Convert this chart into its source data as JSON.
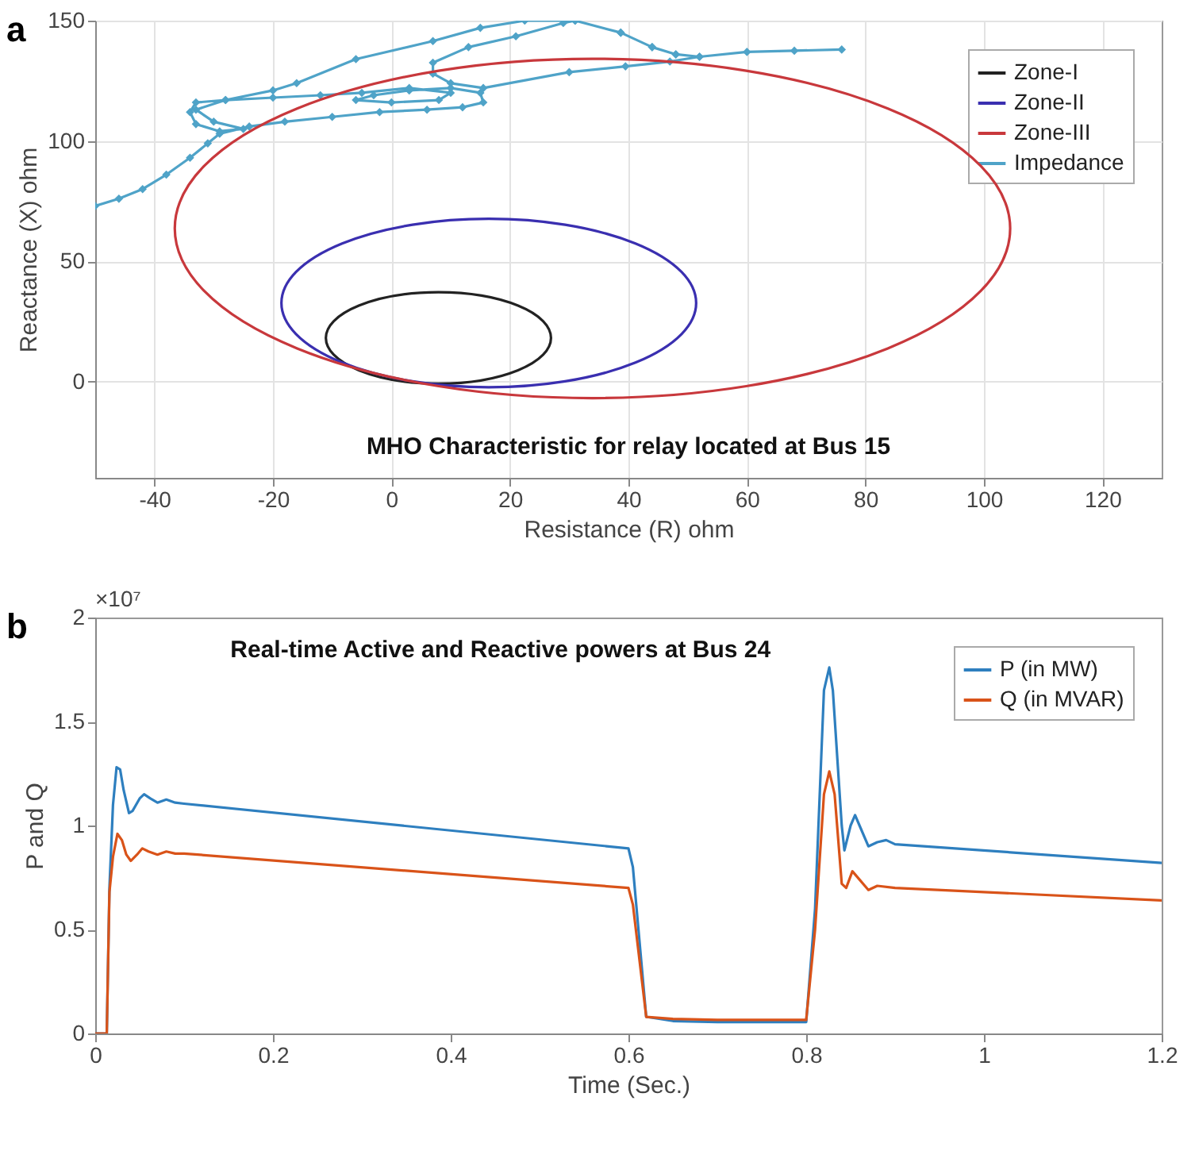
{
  "chart_data": [
    {
      "type": "line",
      "title": "MHO Characteristic for relay located at Bus 15",
      "xlabel": "Resistance (R) ohm",
      "ylabel": "Reactance (X) ohm",
      "annotations": [
        "a",
        "Zone-I",
        "Zone-II",
        "Zone-III"
      ],
      "xlim": [
        -50,
        130
      ],
      "xticks": [
        -40,
        -20,
        0,
        20,
        40,
        60,
        80,
        100,
        120
      ],
      "ylim": [
        -40,
        150
      ],
      "yticks": [
        0,
        50,
        100,
        150
      ],
      "grid": true,
      "legend": "top right",
      "series": [
        {
          "name": "Impedance",
          "color": "#4fa3c8",
          "marker": "diamond",
          "x": [
            -50,
            -46,
            -42,
            -38,
            -34,
            -31,
            -29,
            -24,
            -18,
            -10,
            -2,
            6,
            12,
            15.5,
            15,
            10,
            3,
            -3,
            -6,
            0,
            8,
            10,
            3,
            -5,
            -12,
            -20,
            -28,
            -33,
            -34,
            -33,
            -29,
            -25,
            -30,
            -33,
            -28,
            -20,
            -16,
            -6,
            7,
            15,
            22.5,
            31,
            38.7,
            44,
            48,
            52,
            47,
            39.5,
            30,
            15.5,
            10,
            7,
            7,
            13,
            21,
            29,
            31,
            38.7,
            44,
            48,
            52,
            60,
            68,
            76
          ],
          "values": [
            73,
            76,
            80,
            86,
            93,
            99,
            103,
            106,
            108,
            110,
            112,
            113,
            114,
            116,
            120,
            122,
            121,
            119,
            117,
            116,
            117,
            120,
            122,
            120,
            119,
            118,
            117,
            116,
            112,
            107,
            104,
            105,
            108,
            113,
            117,
            121,
            124,
            134,
            141.5,
            147,
            150,
            150,
            145,
            139,
            136,
            135,
            133,
            131,
            128.6,
            122,
            124,
            128,
            132.5,
            139,
            143.5,
            149,
            150,
            145,
            139,
            136,
            135,
            137,
            137.5,
            138
          ]
        }
      ]
    },
    {
      "type": "line",
      "title": "Real-time Active and Reactive powers at Bus 24",
      "xlabel": "Time (Sec.)",
      "ylabel": "P and Q",
      "annotations": [
        "b",
        "×10⁷"
      ],
      "xlim": [
        0,
        1.2
      ],
      "xticks": [
        0,
        0.2,
        0.4,
        0.6,
        0.8,
        1,
        1.2
      ],
      "ylim": [
        0,
        2
      ],
      "yticks": [
        0,
        0.5,
        1,
        1.5,
        2
      ],
      "legend": "top right",
      "series": [
        {
          "name": "P (in MW)",
          "color": "#2e7fbf",
          "x": [
            0,
            0.013,
            0.016,
            0.02,
            0.024,
            0.028,
            0.032,
            0.038,
            0.042,
            0.05,
            0.055,
            0.062,
            0.07,
            0.08,
            0.09,
            0.1,
            0.6,
            0.605,
            0.62,
            0.65,
            0.7,
            0.8,
            0.81,
            0.82,
            0.826,
            0.83,
            0.84,
            0.843,
            0.85,
            0.855,
            0.86,
            0.87,
            0.88,
            0.89,
            0.9,
            1.2
          ],
          "values": [
            0,
            0,
            0.7,
            1.1,
            1.28,
            1.27,
            1.17,
            1.06,
            1.07,
            1.13,
            1.15,
            1.13,
            1.11,
            1.125,
            1.11,
            1.105,
            0.89,
            0.8,
            0.08,
            0.06,
            0.055,
            0.055,
            0.6,
            1.65,
            1.76,
            1.65,
            1,
            0.88,
            1,
            1.05,
            1,
            0.9,
            0.92,
            0.93,
            0.91,
            0.82
          ]
        },
        {
          "name": "Q (in MVAR)",
          "color": "#d95319",
          "x": [
            0,
            0.013,
            0.016,
            0.02,
            0.025,
            0.03,
            0.035,
            0.04,
            0.047,
            0.053,
            0.06,
            0.07,
            0.08,
            0.09,
            0.1,
            0.6,
            0.605,
            0.62,
            0.65,
            0.7,
            0.8,
            0.81,
            0.82,
            0.826,
            0.832,
            0.84,
            0.845,
            0.852,
            0.86,
            0.87,
            0.88,
            0.9,
            1.2
          ],
          "values": [
            0,
            0,
            0.68,
            0.85,
            0.96,
            0.93,
            0.86,
            0.83,
            0.86,
            0.89,
            0.875,
            0.86,
            0.875,
            0.865,
            0.865,
            0.7,
            0.62,
            0.08,
            0.07,
            0.065,
            0.065,
            0.5,
            1.15,
            1.26,
            1.15,
            0.72,
            0.7,
            0.78,
            0.74,
            0.69,
            0.71,
            0.7,
            0.64
          ]
        }
      ]
    }
  ]
}
